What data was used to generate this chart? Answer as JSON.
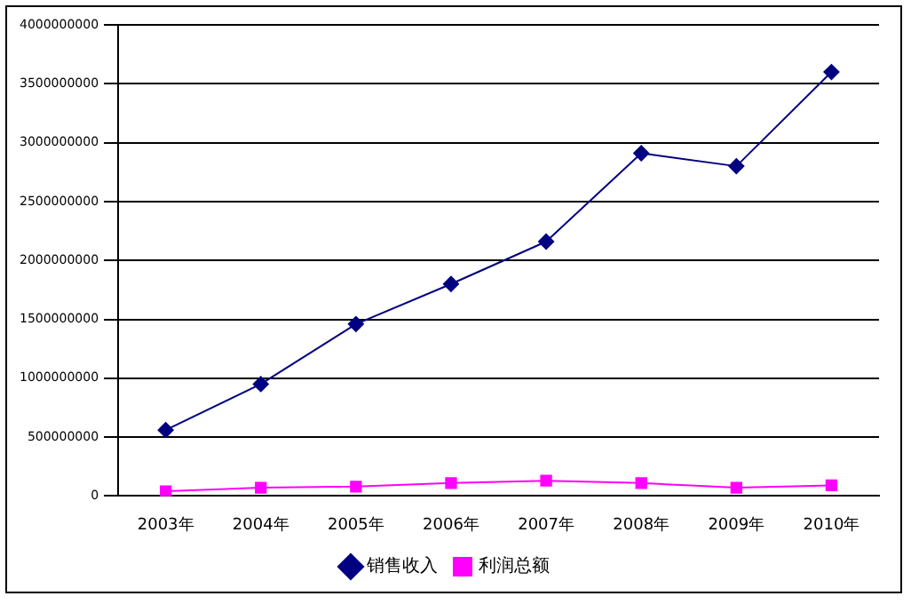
{
  "chart_data": {
    "type": "line",
    "categories": [
      "2003年",
      "2004年",
      "2005年",
      "2006年",
      "2007年",
      "2008年",
      "2009年",
      "2010年"
    ],
    "series": [
      {
        "name": "销售收入",
        "color": "#000080",
        "marker": "diamond",
        "values": [
          560000000,
          950000000,
          1460000000,
          1800000000,
          2160000000,
          2910000000,
          2800000000,
          3600000000
        ]
      },
      {
        "name": "利润总额",
        "color": "#ff00ff",
        "marker": "square",
        "values": [
          40000000,
          70000000,
          80000000,
          110000000,
          130000000,
          110000000,
          70000000,
          90000000
        ]
      }
    ],
    "ylim": [
      0,
      4000000000
    ],
    "yticks": [
      0,
      500000000,
      1000000000,
      1500000000,
      2000000000,
      2500000000,
      3000000000,
      3500000000,
      4000000000
    ],
    "grid": "y",
    "legend": "bottom",
    "line_style": "solid"
  }
}
